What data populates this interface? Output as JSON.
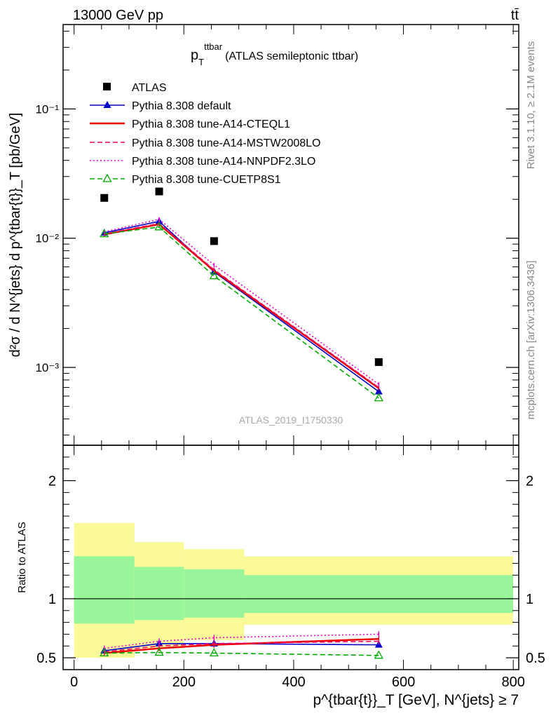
{
  "header": {
    "energy_label": "13000 GeV pp",
    "process_label": "tt̄"
  },
  "side_labels": {
    "rivet": "Rivet 3.1.10, ≥ 2.1M events",
    "mcplots": "mcplots.cern.ch [arXiv:1306.3436]"
  },
  "watermark": "ATLAS_2019_I1750330",
  "chart_data": [
    {
      "type": "line",
      "title": "p_T^{ttbar} (ATLAS semileptonic ttbar)",
      "title_main": "p",
      "title_sub": "T",
      "title_sup": "ttbar",
      "title_rest": "(ATLAS semileptonic ttbar)",
      "ylabel": "d²σ / d N^{jets} d p^{tbar{t}}_T [pb/GeV]",
      "yscale": "log",
      "ylim": [
        0.00025,
        0.45
      ],
      "xlim": [
        -20,
        810
      ],
      "y_ticks": [
        {
          "value": 0.1,
          "label": "10⁻¹"
        },
        {
          "value": 0.01,
          "label": "10⁻²"
        },
        {
          "value": 0.001,
          "label": "10⁻³"
        }
      ],
      "legend_position": "top-left",
      "x": [
        55,
        155,
        255,
        555
      ],
      "data": {
        "name": "ATLAS",
        "values": [
          0.0205,
          0.023,
          0.0095,
          0.0011
        ]
      },
      "series": [
        {
          "name": "Pythia 8.308 default",
          "color": "#0000cc",
          "style": "solid",
          "marker": "triangle",
          "values": [
            0.011,
            0.0135,
            0.0055,
            0.00065
          ]
        },
        {
          "name": "Pythia 8.308 tune-A14-CTEQL1",
          "color": "#ee0000",
          "style": "solid",
          "marker": "none",
          "values": [
            0.0107,
            0.0128,
            0.0056,
            0.00069
          ]
        },
        {
          "name": "Pythia 8.308 tune-A14-MSTW2008LO",
          "color": "#ee0066",
          "style": "dashed",
          "marker": "none",
          "values": [
            0.0108,
            0.013,
            0.0057,
            0.0007
          ]
        },
        {
          "name": "Pythia 8.308 tune-A14-NNPDF2.3LO",
          "color": "#ee00cc",
          "style": "dotted",
          "marker": "none",
          "values": [
            0.0112,
            0.014,
            0.0062,
            0.00074
          ]
        },
        {
          "name": "Pythia 8.308 tune-CUETP8S1",
          "color": "#00aa00",
          "style": "dashed",
          "marker": "open-triangle",
          "values": [
            0.0108,
            0.0122,
            0.0051,
            0.00058
          ]
        }
      ]
    },
    {
      "type": "line",
      "ylabel": "Ratio to ATLAS",
      "xlabel": "p^{tbar{t}}_T [GeV], N^{jets} ≥ 7",
      "xlim": [
        -20,
        810
      ],
      "ylim": [
        0.4,
        2.3
      ],
      "x_ticks": [
        0,
        200,
        400,
        600,
        800
      ],
      "y_ticks": [
        0.5,
        1,
        2
      ],
      "bands": [
        {
          "x_from": 0,
          "x_to": 110,
          "inner": [
            0.79,
            1.36
          ],
          "outer": [
            0.5,
            1.64
          ]
        },
        {
          "x_from": 110,
          "x_to": 200,
          "inner": [
            0.82,
            1.27
          ],
          "outer": [
            0.58,
            1.48
          ]
        },
        {
          "x_from": 200,
          "x_to": 310,
          "inner": [
            0.84,
            1.25
          ],
          "outer": [
            0.65,
            1.42
          ]
        },
        {
          "x_from": 310,
          "x_to": 800,
          "inner": [
            0.88,
            1.2
          ],
          "outer": [
            0.78,
            1.36
          ]
        }
      ],
      "band_colors": {
        "inner": "#99f599",
        "outer": "#fafa99"
      },
      "x": [
        55,
        155,
        255,
        555
      ],
      "series": [
        {
          "name": "Pythia 8.308 default",
          "values": [
            0.56,
            0.62,
            0.62,
            0.61
          ]
        },
        {
          "name": "Pythia 8.308 tune-A14-CTEQL1",
          "values": [
            0.54,
            0.58,
            0.61,
            0.66
          ]
        },
        {
          "name": "Pythia 8.308 tune-A14-MSTW2008LO",
          "values": [
            0.55,
            0.6,
            0.62,
            0.64
          ]
        },
        {
          "name": "Pythia 8.308 tune-A14-NNPDF2.3LO",
          "values": [
            0.58,
            0.64,
            0.67,
            0.7
          ]
        },
        {
          "name": "Pythia 8.308 tune-CUETP8S1",
          "values": [
            0.54,
            0.545,
            0.54,
            0.52
          ]
        }
      ]
    }
  ]
}
